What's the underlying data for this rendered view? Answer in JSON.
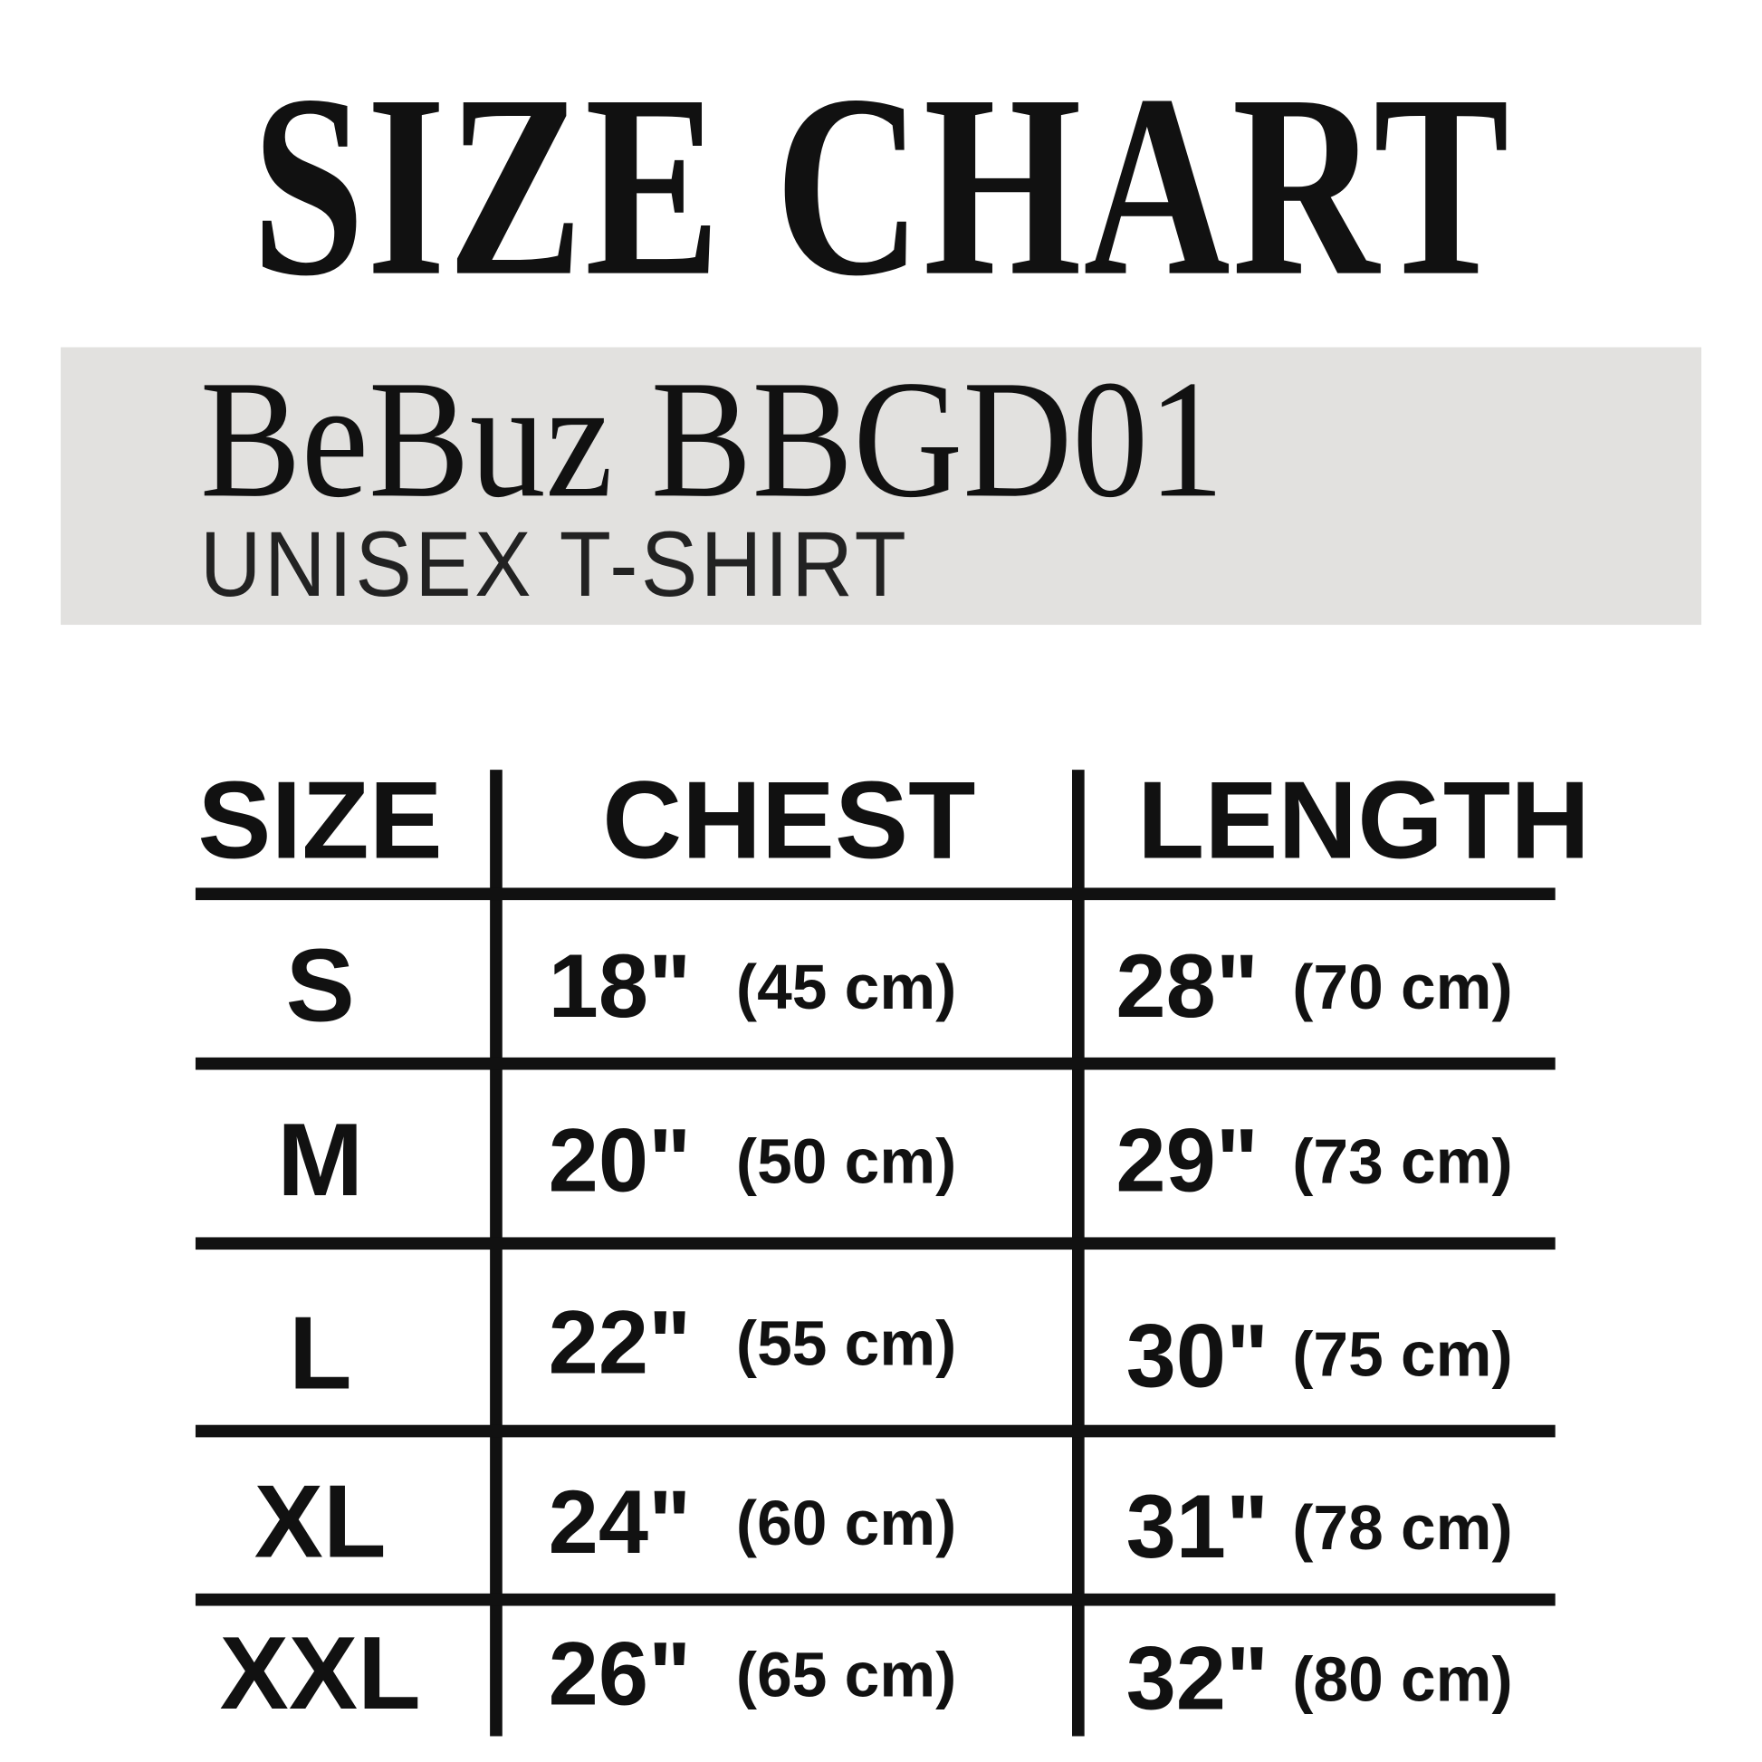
{
  "title": "SIZE CHART",
  "product": {
    "model": "BeBuz BBGD01",
    "type": "UNISEX T-SHIRT"
  },
  "band_color": "#e2e1df",
  "table": {
    "headers": [
      "SIZE",
      "CHEST",
      "LENGTH"
    ],
    "rows": [
      {
        "size": "S",
        "chest_in": "18\"",
        "chest_cm": "(45 cm)",
        "length_in": "28\"",
        "length_cm": "(70 cm)"
      },
      {
        "size": "M",
        "chest_in": "20\"",
        "chest_cm": "(50 cm)",
        "length_in": "29\"",
        "length_cm": "(73 cm)"
      },
      {
        "size": "L",
        "chest_in": "22\"",
        "chest_cm": "(55 cm)",
        "length_in": "30\"",
        "length_cm": "(75 cm)"
      },
      {
        "size": "XL",
        "chest_in": "24\"",
        "chest_cm": "(60 cm)",
        "length_in": "31\"",
        "length_cm": "(78 cm)"
      },
      {
        "size": "XXL",
        "chest_in": "26\"",
        "chest_cm": "(65 cm)",
        "length_in": "32\"",
        "length_cm": "(80 cm)"
      }
    ]
  }
}
